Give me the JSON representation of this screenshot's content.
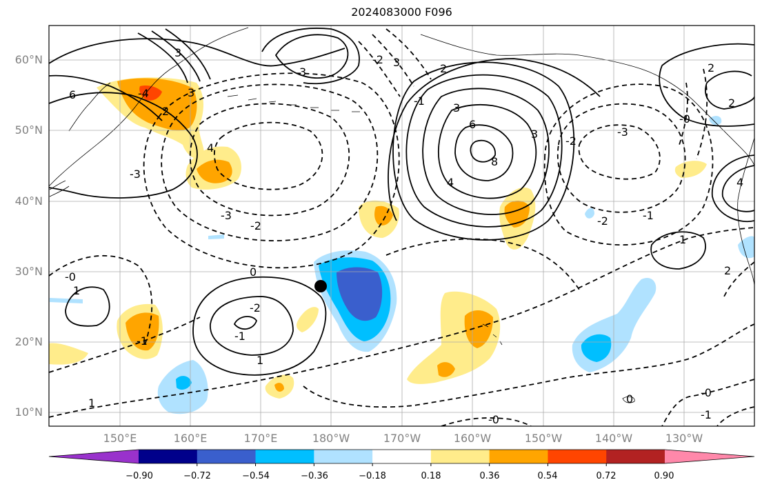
{
  "title": "2024083000 F096",
  "lat_labels": [
    "60°N",
    "50°N",
    "40°N",
    "30°N",
    "20°N",
    "10°N"
  ],
  "lon_labels": [
    "150°E",
    "160°E",
    "170°E",
    "180°W",
    "170°W",
    "160°W",
    "150°W",
    "140°W",
    "130°W"
  ],
  "contour_labels": [
    "6",
    "-4",
    "2",
    "3",
    "-3",
    "3",
    "-2",
    "3",
    "2",
    "-1",
    "-2",
    "-3",
    "3",
    "6",
    "8",
    "4",
    "-2",
    "3",
    "2",
    "2",
    "-3",
    "-0",
    "-2",
    "-1",
    "4",
    "1",
    "1",
    "-0",
    "-1",
    "0",
    "-2",
    "1",
    "-1",
    "2",
    "-2",
    "1",
    "-0",
    "-0",
    "-0",
    "-1",
    "0",
    "4",
    "3"
  ],
  "colorbar": {
    "colors": [
      "#9932cc",
      "#00008b",
      "#3a5fcd",
      "#00bfff",
      "#b0e2ff",
      "#ffffff",
      "#ffec8b",
      "#ffa500",
      "#ff4500",
      "#b22222",
      "#ff88aa"
    ],
    "tick_labels": [
      "−0.90",
      "−0.72",
      "−0.54",
      "−0.36",
      "−0.18",
      "0.18",
      "0.36",
      "0.54",
      "0.72",
      "0.90"
    ]
  },
  "marker_color": "#000000"
}
